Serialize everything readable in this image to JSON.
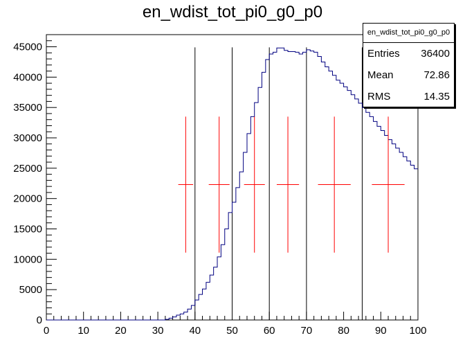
{
  "chart_data": {
    "type": "histogram",
    "title": "en_wdist_tot_pi0_g0_p0",
    "xlim": [
      0,
      100
    ],
    "ylim": [
      0,
      47000
    ],
    "x_ticks": [
      0,
      10,
      20,
      30,
      40,
      50,
      60,
      70,
      80,
      90,
      100
    ],
    "y_ticks": [
      0,
      5000,
      10000,
      15000,
      20000,
      25000,
      30000,
      35000,
      40000,
      45000
    ],
    "bin_width": 1,
    "bin_values": [
      0,
      0,
      0,
      0,
      0,
      0,
      0,
      0,
      0,
      0,
      0,
      0,
      0,
      0,
      0,
      0,
      0,
      0,
      0,
      0,
      0,
      0,
      0,
      0,
      0,
      0,
      0,
      0,
      0,
      0,
      0,
      0,
      100,
      300,
      500,
      800,
      1000,
      1300,
      1800,
      2400,
      3300,
      4200,
      5100,
      6200,
      7400,
      8700,
      10400,
      12400,
      15000,
      17700,
      19400,
      21800,
      24400,
      27600,
      30700,
      33500,
      35800,
      38300,
      40800,
      42900,
      43800,
      44100,
      44800,
      44800,
      44400,
      44200,
      44200,
      44100,
      43800,
      44100,
      44500,
      44300,
      44100,
      43400,
      42500,
      41700,
      41000,
      40300,
      39500,
      39000,
      38400,
      37800,
      37100,
      36400,
      35700,
      35000,
      34200,
      33500,
      32700,
      31900,
      31200,
      30400,
      29700,
      29000,
      28300,
      27600,
      26900,
      26200,
      25500,
      24900
    ],
    "vertical_lines_x": [
      40,
      50,
      60,
      70,
      85
    ],
    "error_points": [
      {
        "x": 37.5,
        "y": 22300,
        "x_err": 2.0,
        "y_err": 11200
      },
      {
        "x": 46.5,
        "y": 22300,
        "x_err": 2.8,
        "y_err": 11200
      },
      {
        "x": 56.0,
        "y": 22300,
        "x_err": 2.8,
        "y_err": 11200
      },
      {
        "x": 65.0,
        "y": 22300,
        "x_err": 3.0,
        "y_err": 11200
      },
      {
        "x": 77.5,
        "y": 22300,
        "x_err": 4.4,
        "y_err": 11200
      },
      {
        "x": 92.0,
        "y": 22300,
        "x_err": 4.4,
        "y_err": 11200
      }
    ],
    "colors": {
      "histogram": "#000080",
      "lines": "#000000",
      "markers": "#ff0000"
    },
    "stats": {
      "name": "en_wdist_tot_pi0_g0_p0",
      "entries_label": "Entries",
      "entries": "36400",
      "mean_label": "Mean",
      "mean": "72.86",
      "rms_label": "RMS",
      "rms": "14.35"
    }
  }
}
